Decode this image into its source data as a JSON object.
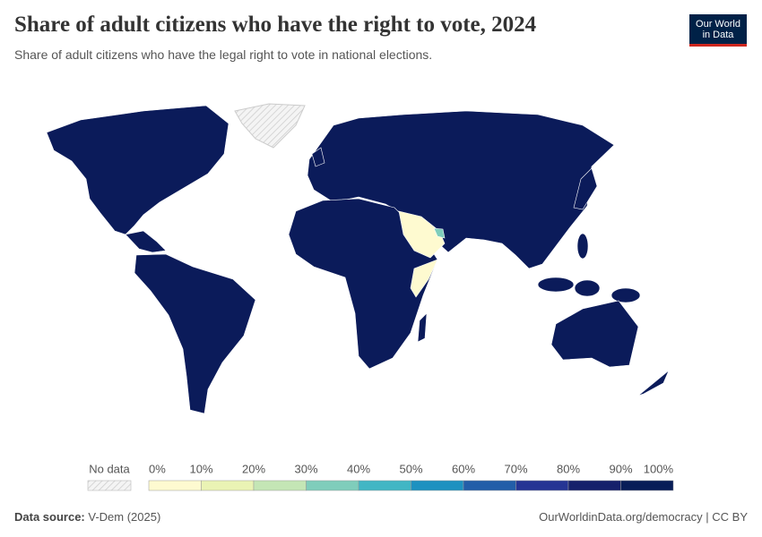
{
  "header": {
    "title": "Share of adult citizens who have the right to vote, 2024",
    "subtitle": "Share of adult citizens who have the legal right to vote in national elections."
  },
  "logo": {
    "line1": "Our World",
    "line2": "in Data"
  },
  "legend": {
    "no_data": "No data",
    "labels": [
      "0%",
      "10%",
      "20%",
      "30%",
      "40%",
      "50%",
      "60%",
      "70%",
      "80%",
      "90%",
      "100%"
    ],
    "colors": [
      "#fefad0",
      "#eaf3b4",
      "#c4e6b5",
      "#7fcdbb",
      "#41b6c4",
      "#1d91c0",
      "#225ea8",
      "#253494",
      "#15206b",
      "#081d58"
    ]
  },
  "footer": {
    "source_label": "Data source:",
    "source": "V-Dem (2025)",
    "link": "OurWorldinData.org/democracy | CC BY"
  }
}
